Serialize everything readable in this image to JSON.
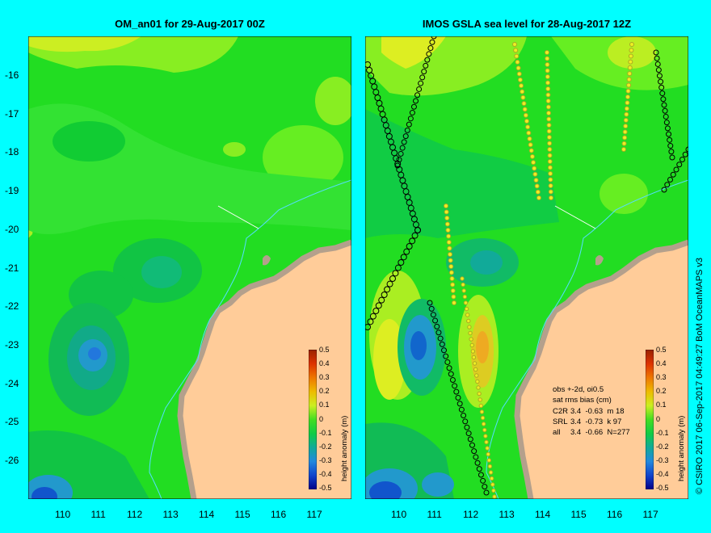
{
  "left_panel": {
    "title": "OM_an01 for 29-Aug-2017 00Z",
    "colorbar": {
      "label": "height anomaly (m)",
      "ticks": [
        "0.5",
        "0.4",
        "0.3",
        "0.2",
        "0.1",
        "0",
        "-0.1",
        "-0.2",
        "-0.3",
        "-0.4",
        "-0.5"
      ]
    }
  },
  "right_panel": {
    "title": "IMOS GSLA sea level  for 28-Aug-2017 12Z",
    "colorbar": {
      "label": "height anomaly (m)",
      "ticks": [
        "0.5",
        "0.4",
        "0.3",
        "0.2",
        "0.1",
        "0",
        "-0.1",
        "-0.2",
        "-0.3",
        "-0.4",
        "-0.5"
      ]
    },
    "stats": {
      "line1": "obs +-2d, oi0.5",
      "line2": "sat rms bias (cm)",
      "rows": [
        {
          "sat": "C2R",
          "vals": "3.4  -0.63  m 18"
        },
        {
          "sat": "SRL",
          "vals": "3.4  -0.73  k 97"
        },
        {
          "sat": "all",
          "vals": "3.4  -0.66  N=277"
        }
      ]
    }
  },
  "axes": {
    "lat_ticks": [
      "-16",
      "-17",
      "-18",
      "-19",
      "-20",
      "-21",
      "-22",
      "-23",
      "-24",
      "-25",
      "-26"
    ],
    "lon_ticks": [
      "110",
      "111",
      "112",
      "113",
      "114",
      "115",
      "116",
      "117"
    ]
  },
  "credit": "© CSIRO 2017   06-Sep-2017 04:49:27 BoM OceanMAPS v3",
  "colors": {
    "background": "#00ffff",
    "land": "#ffcc99",
    "coast_band": "#b4a08c",
    "ocean_base": "#22dd22"
  }
}
